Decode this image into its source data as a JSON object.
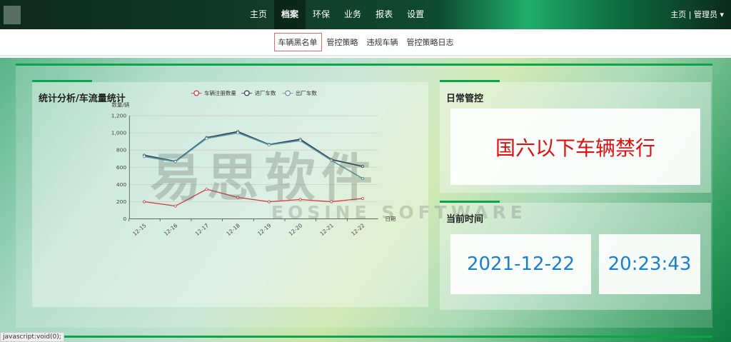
{
  "header": {
    "nav": [
      "主页",
      "档案",
      "环保",
      "业务",
      "报表",
      "设置"
    ],
    "active_nav": 1,
    "user": "主页 | 管理员 ▾"
  },
  "subnav": {
    "items": [
      "车辆黑名单",
      "管控策略",
      "违规车辆",
      "管控策略日志"
    ],
    "active": 0
  },
  "chart_panel": {
    "title": "统计分析/车流量统计"
  },
  "control_panel": {
    "title": "日常管控",
    "notice": "国六以下车辆禁行"
  },
  "time_panel": {
    "title": "当前时间",
    "date": "2021-12-22",
    "time": "20:23:43"
  },
  "watermark": {
    "cn": "易思软件",
    "en": "EOSINE SOFTWARE"
  },
  "statusbar": "javascript:void(0);",
  "chart_data": {
    "type": "line",
    "categories": [
      "12-15",
      "12-16",
      "12-17",
      "12-18",
      "12-19",
      "12-20",
      "12-21",
      "12-22"
    ],
    "ylabel": "数量/辆",
    "xlabel": "日期",
    "ylim": [
      0,
      1200
    ],
    "yticks": [
      "0",
      "200",
      "400",
      "600",
      "800",
      "1,000",
      "1,200"
    ],
    "grid": true,
    "legend": "top",
    "series": [
      {
        "name": "车辆注册数量",
        "color": "#d23a3a",
        "values": [
          200,
          150,
          345,
          250,
          200,
          225,
          200,
          237
        ]
      },
      {
        "name": "进厂车数",
        "color": "#2f4050",
        "values": [
          740,
          670,
          945,
          1015,
          865,
          925,
          690,
          610
        ]
      },
      {
        "name": "出厂车数",
        "color": "#5a9aa8",
        "values": [
          725,
          665,
          935,
          1000,
          860,
          910,
          680,
          470
        ]
      }
    ]
  }
}
